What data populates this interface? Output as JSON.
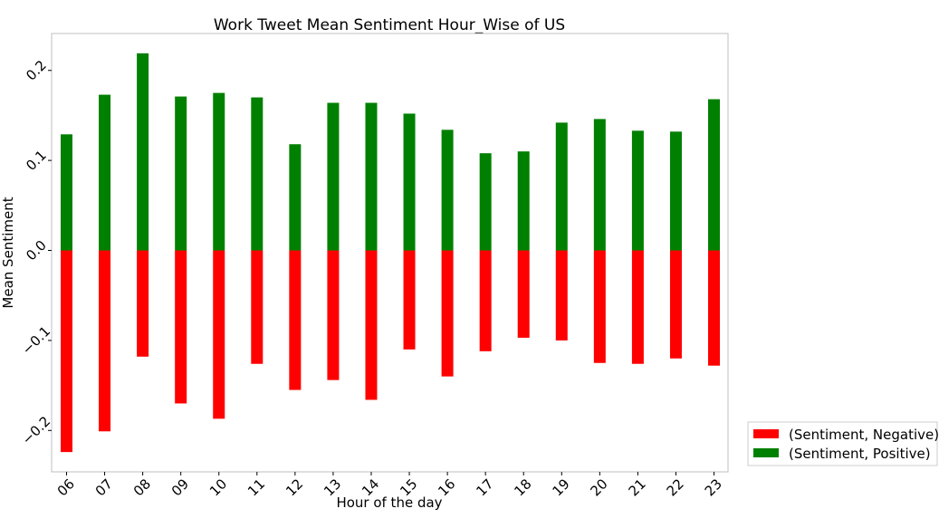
{
  "chart_data": {
    "type": "bar",
    "title": "Work Tweet Mean Sentiment Hour_Wise of US",
    "xlabel": "Hour of the day",
    "ylabel": "Mean Sentiment",
    "categories": [
      "06",
      "07",
      "08",
      "09",
      "10",
      "11",
      "12",
      "13",
      "14",
      "15",
      "16",
      "17",
      "18",
      "19",
      "20",
      "21",
      "22",
      "23"
    ],
    "series": [
      {
        "name": "(Sentiment, Negative)",
        "color": "#ff0000",
        "values": [
          -0.224,
          -0.201,
          -0.118,
          -0.17,
          -0.187,
          -0.126,
          -0.155,
          -0.144,
          -0.166,
          -0.11,
          -0.14,
          -0.112,
          -0.097,
          -0.1,
          -0.125,
          -0.126,
          -0.12,
          -0.128
        ]
      },
      {
        "name": "(Sentiment, Positive)",
        "color": "#008000",
        "values": [
          0.129,
          0.173,
          0.219,
          0.171,
          0.175,
          0.17,
          0.118,
          0.164,
          0.164,
          0.152,
          0.134,
          0.108,
          0.11,
          0.142,
          0.146,
          0.133,
          0.132,
          0.168
        ]
      }
    ],
    "ylim": [
      -0.246,
      0.241
    ],
    "yticks": [
      -0.2,
      -0.1,
      0.0,
      0.1,
      0.2
    ],
    "ytick_labels": [
      "−0.2",
      "−0.1",
      "0.0",
      "0.1",
      "0.2"
    ],
    "grid": false,
    "legend_position": "outside-bottom-right"
  }
}
